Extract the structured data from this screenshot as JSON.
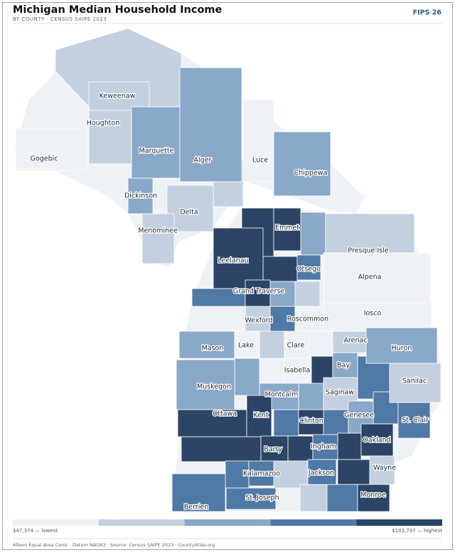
{
  "header": {
    "title": "Michigan Median Household Income",
    "subtitle": "BY COUNTY · CENSUS SAIPE 2023",
    "badge": "FIPS 26"
  },
  "counties": [
    {
      "name": "Keweenaw",
      "color": "#c3d0e0"
    },
    {
      "name": "Houghton",
      "color": "#c3d0e0"
    },
    {
      "name": "Gogebic",
      "color": "#eef1f6"
    },
    {
      "name": "Marquette",
      "color": "#8aa8c8"
    },
    {
      "name": "Alger",
      "color": "#8aa8c8"
    },
    {
      "name": "Luce",
      "color": "#eef1f6"
    },
    {
      "name": "Chippewa",
      "color": "#8aa8c8"
    },
    {
      "name": "Dickinson",
      "color": "#8aa8c8"
    },
    {
      "name": "Delta",
      "color": "#c3d0e0"
    },
    {
      "name": "Menominee",
      "color": "#c3d0e0"
    },
    {
      "name": "Emmet",
      "color": "#2c4566"
    },
    {
      "name": "Presque Isle",
      "color": "#c3d0e0"
    },
    {
      "name": "Leelanau",
      "color": "#2c4566"
    },
    {
      "name": "Otsego",
      "color": "#5079a6"
    },
    {
      "name": "Alpena",
      "color": "#eef1f6"
    },
    {
      "name": "Grand Traverse",
      "color": "#2c4566"
    },
    {
      "name": "Roscommon",
      "color": "#eef1f6"
    },
    {
      "name": "Wexford",
      "color": "#c3d0e0"
    },
    {
      "name": "Iosco",
      "color": "#eef1f6"
    },
    {
      "name": "Arenac",
      "color": "#c3d0e0"
    },
    {
      "name": "Mason",
      "color": "#8aa8c8"
    },
    {
      "name": "Lake",
      "color": "#eef1f6"
    },
    {
      "name": "Clare",
      "color": "#eef1f6"
    },
    {
      "name": "Huron",
      "color": "#8aa8c8"
    },
    {
      "name": "Bay",
      "color": "#8aa8c8"
    },
    {
      "name": "Isabella",
      "color": "#eef1f6"
    },
    {
      "name": "Sanilac",
      "color": "#c3d0e0"
    },
    {
      "name": "Muskegon",
      "color": "#8aa8c8"
    },
    {
      "name": "Montcalm",
      "color": "#8aa8c8"
    },
    {
      "name": "Saginaw",
      "color": "#c3d0e0"
    },
    {
      "name": "Ottawa",
      "color": "#2c4566"
    },
    {
      "name": "Kent",
      "color": "#2c4566"
    },
    {
      "name": "Clinton",
      "color": "#2c4566"
    },
    {
      "name": "Genesee",
      "color": "#8aa8c8"
    },
    {
      "name": "St. Clair",
      "color": "#5079a6"
    },
    {
      "name": "Oakland",
      "color": "#2c4566"
    },
    {
      "name": "Barry",
      "color": "#2c4566"
    },
    {
      "name": "Ingham",
      "color": "#5079a6"
    },
    {
      "name": "Wayne",
      "color": "#c3d0e0"
    },
    {
      "name": "Kalamazoo",
      "color": "#5079a6"
    },
    {
      "name": "Jackson",
      "color": "#5079a6"
    },
    {
      "name": "St. Joseph",
      "color": "#5079a6"
    },
    {
      "name": "Monroe",
      "color": "#2c4566"
    },
    {
      "name": "Berrien",
      "color": "#5079a6"
    }
  ],
  "legend": {
    "colors": [
      "#eef1f6",
      "#c3d0e0",
      "#8aa8c8",
      "#5079a6",
      "#2c4566"
    ],
    "low": "$47,374 — lowest",
    "high": "$103,737 — highest"
  },
  "footer": "Albers Equal Area Conic · Datum NAD83 · Source: Census SAIPE 2023 · CountyAtlas.org"
}
